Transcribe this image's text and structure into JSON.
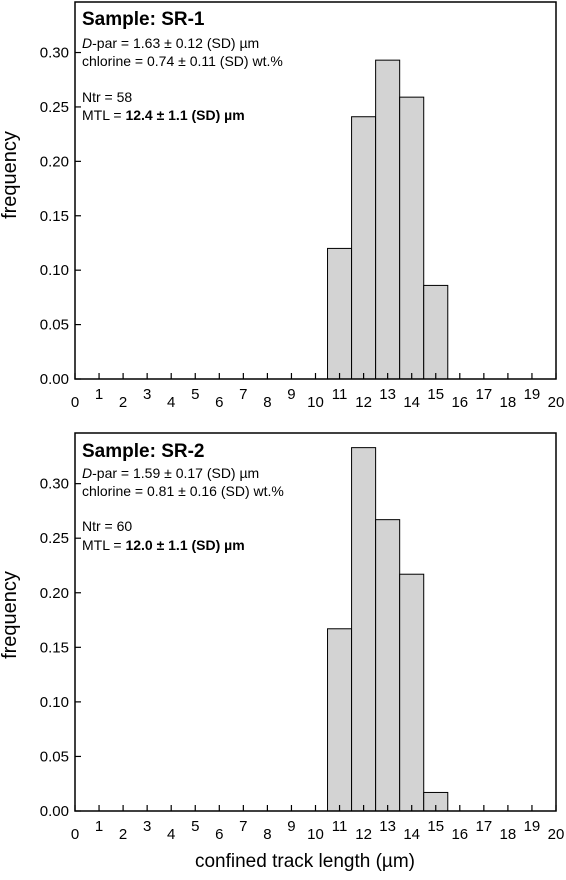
{
  "x_axis_label": "confined track length  (µm)",
  "chart_data": [
    {
      "type": "bar",
      "title": "Sample: SR-1",
      "ylabel": "frequency",
      "xlim": [
        0,
        20
      ],
      "ylim": [
        0,
        0.34
      ],
      "x_ticks": [
        "0",
        "1",
        "2",
        "3",
        "4",
        "5",
        "6",
        "7",
        "8",
        "9",
        "10",
        "11",
        "12",
        "13",
        "14",
        "15",
        "16",
        "17",
        "18",
        "19",
        "20"
      ],
      "y_ticks": [
        "0.00",
        "0.05",
        "0.10",
        "0.15",
        "0.20",
        "0.25",
        "0.30"
      ],
      "bins": [
        [
          10.5,
          11.5
        ],
        [
          11.5,
          12.5
        ],
        [
          12.5,
          13.5
        ],
        [
          13.5,
          14.5
        ],
        [
          14.5,
          15.5
        ]
      ],
      "values": [
        0.12,
        0.241,
        0.293,
        0.259,
        0.086
      ],
      "bar_fill": "#d3d3d3",
      "annotations": {
        "dpar_symbol": "D",
        "dpar_rest": "-par = 1.63 ± 0.12 (SD) µm",
        "chlorine": "chlorine = 0.74 ± 0.11 (SD) wt.%",
        "ntr": "Ntr = 58",
        "mtl_prefix": "MTL = ",
        "mtl_value": "12.4 ± 1.1 (SD) µm"
      }
    },
    {
      "type": "bar",
      "title": "Sample: SR-2",
      "ylabel": "frequency",
      "xlim": [
        0,
        20
      ],
      "ylim": [
        0,
        0.34
      ],
      "x_ticks": [
        "0",
        "1",
        "2",
        "3",
        "4",
        "5",
        "6",
        "7",
        "8",
        "9",
        "10",
        "11",
        "12",
        "13",
        "14",
        "15",
        "16",
        "17",
        "18",
        "19",
        "20"
      ],
      "y_ticks": [
        "0.00",
        "0.05",
        "0.10",
        "0.15",
        "0.20",
        "0.25",
        "0.30"
      ],
      "bins": [
        [
          10.5,
          11.5
        ],
        [
          11.5,
          12.5
        ],
        [
          12.5,
          13.5
        ],
        [
          13.5,
          14.5
        ],
        [
          14.5,
          15.5
        ]
      ],
      "values": [
        0.167,
        0.333,
        0.267,
        0.217,
        0.017
      ],
      "bar_fill": "#d3d3d3",
      "annotations": {
        "dpar_symbol": "D",
        "dpar_rest": "-par = 1.59 ± 0.17 (SD) µm",
        "chlorine": "chlorine = 0.81 ± 0.16 (SD) wt.%",
        "ntr": "Ntr = 60",
        "mtl_prefix": "MTL = ",
        "mtl_value": "12.0 ± 1.1 (SD) µm"
      }
    }
  ]
}
